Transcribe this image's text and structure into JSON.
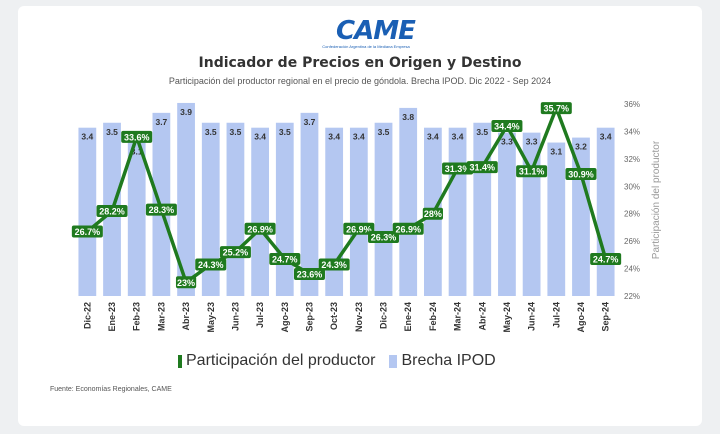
{
  "logo": {
    "text": "CAME",
    "subtitle": "Confederación Argentina de la Mediana Empresa"
  },
  "title": "Indicador de Precios en Origen y Destino",
  "subtitle": "Participación del productor regional en el precio de góndola. Brecha IPOD. Dic 2022 - Sep 2024",
  "source": "Fuente: Economías Regionales, CAME",
  "colors": {
    "bar": "#b4c7f1",
    "line": "#1f7a1f",
    "label_bg": "#1f7a1f",
    "label_text": "#ffffff"
  },
  "chart_data": {
    "type": "bar+line",
    "categories": [
      "Dic-22",
      "Ene-23",
      "Feb-23",
      "Mar-23",
      "Abr-23",
      "May-23",
      "Jun-23",
      "Jul-23",
      "Ago-23",
      "Sep-23",
      "Oct-23",
      "Nov-23",
      "Dic-23",
      "Ene-24",
      "Feb-24",
      "Mar-24",
      "Abr-24",
      "May-24",
      "Jun-24",
      "Jul-24",
      "Ago-24",
      "Sep-24"
    ],
    "series": [
      {
        "name": "Brecha IPOD",
        "type": "bar",
        "values": [
          3.4,
          3.5,
          3.1,
          3.7,
          3.9,
          3.5,
          3.5,
          3.4,
          3.5,
          3.7,
          3.4,
          3.4,
          3.5,
          3.8,
          3.4,
          3.4,
          3.5,
          3.3,
          3.3,
          3.1,
          3.2,
          3.4
        ],
        "labels": [
          "3.4",
          "3.5",
          "3.1",
          "3.7",
          "3.9",
          "3.5",
          "3.5",
          "3.4",
          "3.5",
          "3.7",
          "3.4",
          "3.4",
          "3.5",
          "3.8",
          "3.4",
          "3.4",
          "3.5",
          "3.3",
          "3.3",
          "3.1",
          "3.2",
          "3.4"
        ]
      },
      {
        "name": "Participación del productor",
        "type": "line",
        "values": [
          26.7,
          28.2,
          33.6,
          28.3,
          23,
          24.3,
          25.2,
          26.9,
          24.7,
          23.6,
          24.3,
          26.9,
          26.3,
          26.9,
          28,
          31.3,
          31.4,
          34.4,
          31.1,
          35.7,
          30.9,
          24.7
        ],
        "labels": [
          "26.7%",
          "28.2%",
          "33.6%",
          "28.3%",
          "23%",
          "24.3%",
          "25.2%",
          "26.9%",
          "24.7%",
          "23.6%",
          "24.3%",
          "26.9%",
          "26.3%",
          "26.9%",
          "28%",
          "31.3%",
          "31.4%",
          "34.4%",
          "31.1%",
          "35.7%",
          "30.9%",
          "24.7%"
        ]
      }
    ],
    "right_axis": {
      "label": "Participación del productor",
      "ticks": [
        "22%",
        "24%",
        "26%",
        "28%",
        "30%",
        "32%",
        "34%",
        "36%"
      ],
      "range": [
        22,
        36
      ]
    },
    "bar_scale_max": 4.0,
    "legend_placement": "bottom",
    "grid": false
  }
}
